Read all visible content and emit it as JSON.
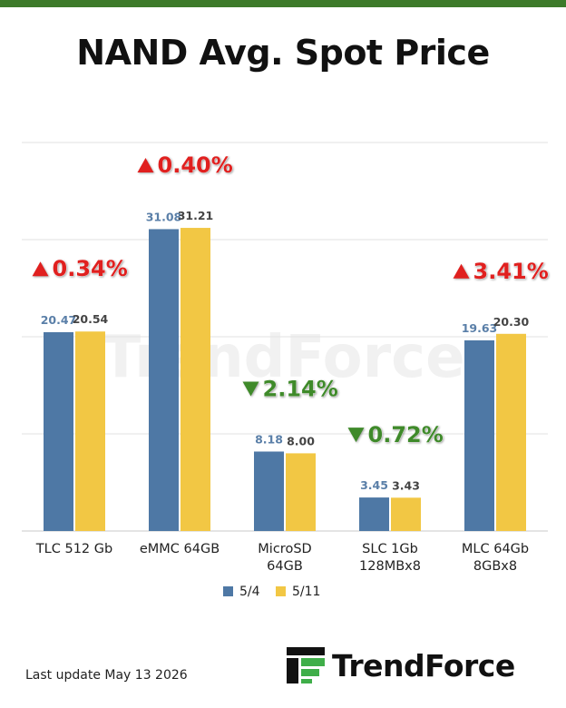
{
  "title": "NAND Avg. Spot Price",
  "footer": {
    "last_update": "Last update  May 13  2026"
  },
  "logo": {
    "text": "TrendForce",
    "watermark": "TrendForce"
  },
  "colors": {
    "topbar": "#3d7a2a",
    "series_1": "#4e78a5",
    "series_2": "#f2c744",
    "up": "#e0201f",
    "down": "#3f8a2a",
    "logo_green": "#3fae49"
  },
  "chart_data": {
    "type": "bar",
    "categories": [
      [
        "TLC 512 Gb"
      ],
      [
        "eMMC 64GB"
      ],
      [
        "MicroSD",
        "64GB"
      ],
      [
        "SLC 1Gb",
        "128MBx8"
      ],
      [
        "MLC 64Gb",
        "8GBx8"
      ]
    ],
    "series": [
      {
        "name": "5/4",
        "values": [
          20.47,
          31.08,
          8.18,
          3.45,
          19.63
        ]
      },
      {
        "name": "5/11",
        "values": [
          20.54,
          31.21,
          8.0,
          3.43,
          20.3
        ]
      }
    ],
    "value_labels": [
      [
        "20.47",
        "31.08",
        "8.18",
        "3.45",
        "19.63"
      ],
      [
        "20.54",
        "31.21",
        "8.00",
        "3.43",
        "20.30"
      ]
    ],
    "changes": [
      {
        "direction": "up",
        "text": "0.34%"
      },
      {
        "direction": "up",
        "text": "0.40%"
      },
      {
        "direction": "down",
        "text": "2.14%"
      },
      {
        "direction": "down",
        "text": "0.72%"
      },
      {
        "direction": "up",
        "text": "3.41%"
      }
    ],
    "ylim": [
      0,
      40
    ],
    "grid": true,
    "legend_position": "bottom",
    "xlabel": "",
    "ylabel": ""
  }
}
